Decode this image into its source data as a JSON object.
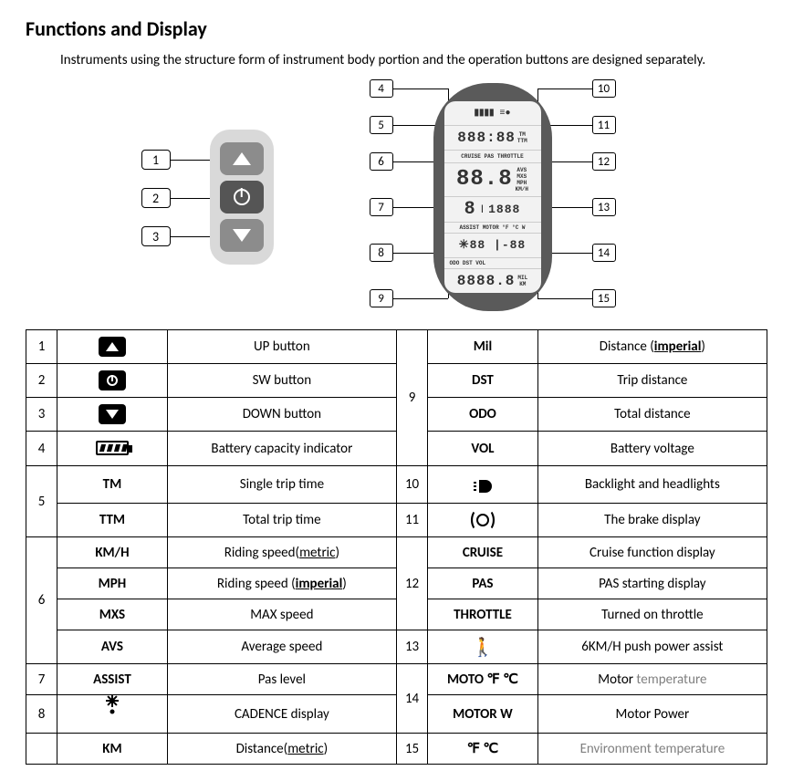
{
  "heading": "Functions and Display",
  "intro": "Instruments using the structure form of instrument body portion and the operation buttons are designed separately.",
  "remote_callouts": [
    "1",
    "2",
    "3"
  ],
  "display_callouts_left": [
    "4",
    "5",
    "6",
    "7",
    "8",
    "9"
  ],
  "display_callouts_right": [
    "10",
    "11",
    "12",
    "13",
    "14",
    "15"
  ],
  "lcd_rows": {
    "r1": "▮▮▮▮   ≡●",
    "r2_seg": "888:88",
    "r2_suffix": "TM\nTTM",
    "r3_tiny": "CRUISE  PAS  THROTTLE",
    "r4_big": "88.8",
    "r4_side": "AVS\nMXS\nMPH\nKM/H",
    "r5_left": "8",
    "r5_right": "1888",
    "r5_label": "ASSIST        MOTOR °F °C  W",
    "r6": "✳88 |-88",
    "r7_tiny": "ODO DST VOL",
    "r7_seg": "8888.8",
    "r7_side": "MIL\nKM"
  },
  "table": {
    "rows": [
      {
        "idx": "1",
        "sym_type": "icon-up",
        "desc": "UP button",
        "idx2": "9",
        "rowspan2": 4,
        "sym2": "Mil",
        "sym2_bold": true,
        "desc2_html": "Distance (<b><span class='underline'>imperial</span></b>)"
      },
      {
        "idx": "2",
        "sym_type": "icon-pwr",
        "desc": "SW button",
        "sym2": "DST",
        "sym2_bold": true,
        "desc2": "Trip distance"
      },
      {
        "idx": "3",
        "sym_type": "icon-down",
        "desc": "DOWN button",
        "sym2": "ODO",
        "sym2_bold": true,
        "desc2": "Total distance"
      },
      {
        "idx": "4",
        "sym_type": "icon-batt",
        "desc": "Battery capacity indicator",
        "sym2": "VOL",
        "sym2_bold": true,
        "desc2": "Battery voltage"
      },
      {
        "idx": "5",
        "rowspan": 2,
        "sym": "TM",
        "sym_bold": true,
        "desc": "Single trip time",
        "idx2": "10",
        "sym2_type": "icon-light",
        "desc2": "Backlight and headlights"
      },
      {
        "sym": "TTM",
        "sym_bold": true,
        "desc": "Total trip time",
        "idx2": "11",
        "sym2_type": "icon-brake",
        "desc2": "The brake display"
      },
      {
        "idx": "6",
        "rowspan": 4,
        "sym": "KM/H",
        "sym_bold": true,
        "desc_html": "Riding speed(<span class='underline'>metric</span>)",
        "idx2": "12",
        "rowspan2": 3,
        "sym2": "CRUISE",
        "sym2_bold": true,
        "desc2": "Cruise function display"
      },
      {
        "sym": "MPH",
        "sym_bold": true,
        "desc_html": "Riding speed (<b><span class='underline'>imperial</span></b>)",
        "sym2": "PAS",
        "sym2_bold": true,
        "desc2": "PAS starting display"
      },
      {
        "sym": "MXS",
        "sym_bold": true,
        "desc": "MAX speed",
        "sym2": "THROTTLE",
        "sym2_bold": true,
        "desc2": "Turned on throttle"
      },
      {
        "sym": "AVS",
        "sym_bold": true,
        "desc": "Average speed",
        "idx2": "13",
        "sym2_type": "icon-walk",
        "desc2": "6KM/H push power assist"
      },
      {
        "idx": "7",
        "sym": "ASSIST",
        "sym_bold": true,
        "desc": "Pas level",
        "idx2": "14",
        "rowspan2": 2,
        "sym2": "MOTO  ℉  ℃",
        "sym2_bold": true,
        "desc2_html": "Motor <span class='gray'>temperature</span>"
      },
      {
        "idx": "8",
        "sym_type": "icon-cadence",
        "desc": "CADENCE display",
        "sym2": "MOTOR W",
        "sym2_bold": true,
        "desc2": "Motor Power"
      },
      {
        "idx": "",
        "sym": "KM",
        "sym_bold": true,
        "desc_html": "Distance(<span class='underline'>metric</span>)",
        "idx2": "15",
        "sym2": "℉  ℃",
        "sym2_bold": true,
        "desc2_html": "<span class='gray'>Environment temperature</span>"
      }
    ]
  }
}
